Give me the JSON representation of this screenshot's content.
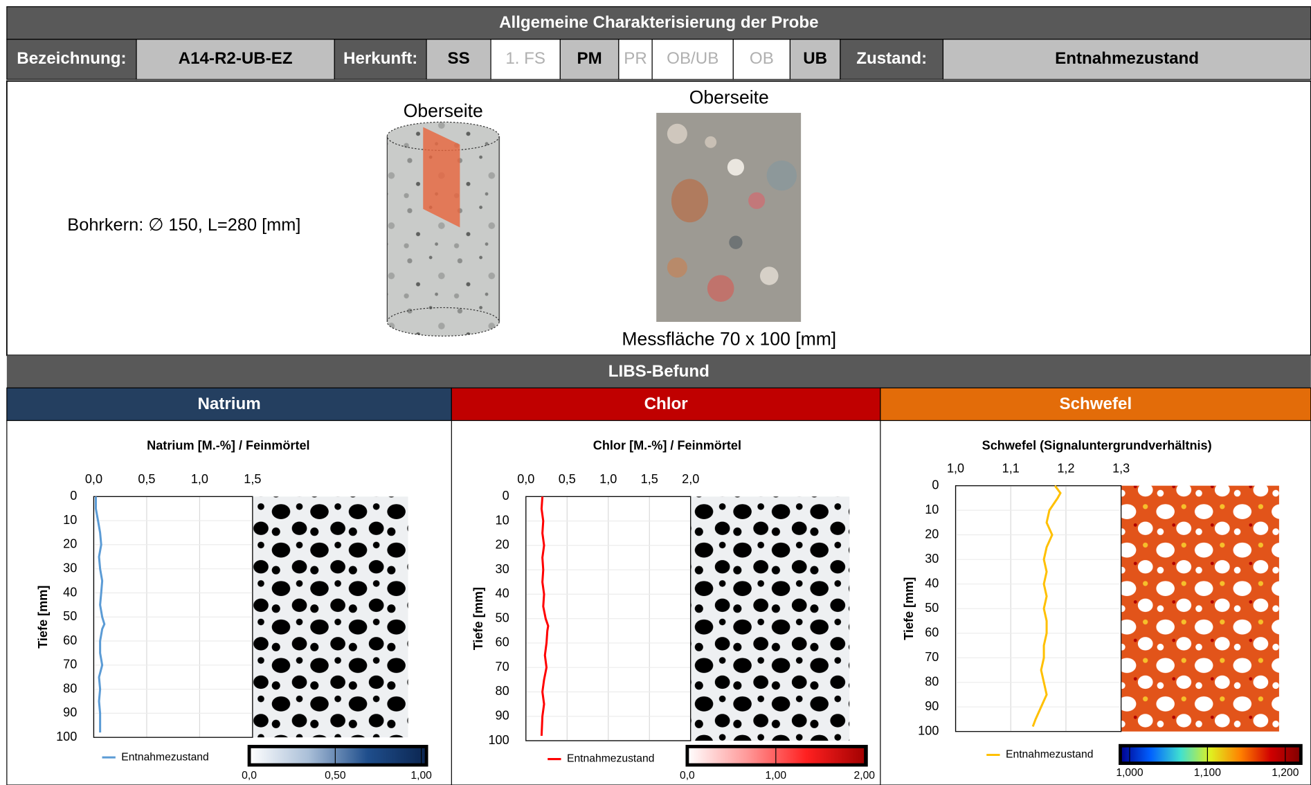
{
  "header": {
    "title": "Allgemeine Charakterisierung der Probe",
    "designation_label": "Bezeichnung:",
    "designation": "A14-R2-UB-EZ",
    "origin_label": "Herkunft:",
    "origin": [
      {
        "label": "SS",
        "selected": true
      },
      {
        "label": "1. FS",
        "selected": false
      },
      {
        "label": "PM",
        "selected": true
      },
      {
        "label": "PR",
        "selected": false
      },
      {
        "label": "OB/UB",
        "selected": false
      },
      {
        "label": "OB",
        "selected": false
      },
      {
        "label": "UB",
        "selected": true
      }
    ],
    "state_label": "Zustand:",
    "state": "Entnahmezustand"
  },
  "sample": {
    "drawing_label": "Oberseite",
    "photo_label": "Oberseite",
    "core": "Bohrkern: ∅ 150, L=280 [mm]",
    "area": "Messfläche 70 x 100 [mm]"
  },
  "libs": {
    "title": "LIBS-Befund",
    "elements": [
      {
        "name": "Natrium",
        "color": "#243f60"
      },
      {
        "name": "Chlor",
        "color": "#c00000"
      },
      {
        "name": "Schwefel",
        "color": "#e36c09"
      }
    ]
  },
  "chart_data": [
    {
      "type": "line",
      "title": "Natrium [M.-%] / Feinmörtel",
      "ylabel": "Tiefe [mm]",
      "xlim": [
        0,
        1.5
      ],
      "xticks": [
        {
          "value": 0,
          "label": "0,0"
        },
        {
          "value": 0.5,
          "label": "0,5"
        },
        {
          "value": 1,
          "label": "1,0"
        },
        {
          "value": 1.5,
          "label": "1,5"
        }
      ],
      "ylim": [
        0,
        100
      ],
      "yticks": [
        0,
        10,
        20,
        30,
        40,
        50,
        60,
        70,
        80,
        90,
        100
      ],
      "y_inverted": true,
      "grid": true,
      "depths": [
        0,
        5,
        10,
        15,
        20,
        25,
        30,
        35,
        40,
        45,
        50,
        53,
        55,
        60,
        65,
        70,
        75,
        80,
        85,
        90,
        98
      ],
      "series": [
        {
          "name": "Entnahmezustand",
          "color": "#5b9bd5",
          "values": [
            0.02,
            0.02,
            0.04,
            0.06,
            0.07,
            0.05,
            0.06,
            0.08,
            0.07,
            0.06,
            0.08,
            0.1,
            0.08,
            0.06,
            0.06,
            0.08,
            0.05,
            0.06,
            0.05,
            0.06,
            0.06
          ]
        }
      ],
      "colorbar": {
        "lim": [
          0,
          1.03
        ],
        "colors": [
          "#ffffff",
          "#aabfd8",
          "#1f4e8c",
          "#0b2550"
        ],
        "ticks": [
          {
            "value": 0,
            "label": "0,0"
          },
          {
            "value": 0.5,
            "label": "0,50"
          },
          {
            "value": 1,
            "label": "1,00"
          }
        ]
      }
    },
    {
      "type": "line",
      "title": "Chlor [M.-%] / Feinmörtel",
      "ylabel": "Tiefe [mm]",
      "xlim": [
        0,
        2
      ],
      "xticks": [
        {
          "value": 0,
          "label": "0,0"
        },
        {
          "value": 0.5,
          "label": "0,5"
        },
        {
          "value": 1,
          "label": "1,0"
        },
        {
          "value": 1.5,
          "label": "1,5"
        },
        {
          "value": 2,
          "label": "2,0"
        }
      ],
      "ylim": [
        0,
        100
      ],
      "yticks": [
        0,
        10,
        20,
        30,
        40,
        50,
        60,
        70,
        80,
        90,
        100
      ],
      "y_inverted": true,
      "grid": true,
      "depths": [
        0,
        5,
        10,
        15,
        20,
        25,
        30,
        35,
        40,
        45,
        50,
        53,
        55,
        60,
        65,
        70,
        75,
        80,
        85,
        90,
        98
      ],
      "series": [
        {
          "name": "Entnahmezustand",
          "color": "#ff0000",
          "values": [
            0.2,
            0.19,
            0.21,
            0.2,
            0.22,
            0.2,
            0.21,
            0.2,
            0.22,
            0.21,
            0.24,
            0.27,
            0.26,
            0.25,
            0.23,
            0.25,
            0.22,
            0.2,
            0.22,
            0.2,
            0.19
          ]
        }
      ],
      "colorbar": {
        "lim": [
          0,
          2.02
        ],
        "colors": [
          "#ffffff",
          "#ff9999",
          "#ff2020",
          "#a00000"
        ],
        "ticks": [
          {
            "value": 0,
            "label": "0,0"
          },
          {
            "value": 1,
            "label": "1,00"
          },
          {
            "value": 2,
            "label": "2,00"
          }
        ]
      }
    },
    {
      "type": "line",
      "title": "Schwefel (Signaluntergrundverhältnis)",
      "ylabel": "Tiefe [mm]",
      "xlim": [
        1,
        1.3
      ],
      "xticks": [
        {
          "value": 1,
          "label": "1,0"
        },
        {
          "value": 1.1,
          "label": "1,1"
        },
        {
          "value": 1.2,
          "label": "1,2"
        },
        {
          "value": 1.3,
          "label": "1,3"
        }
      ],
      "ylim": [
        0,
        100
      ],
      "yticks": [
        0,
        10,
        20,
        30,
        40,
        50,
        60,
        70,
        80,
        90,
        100
      ],
      "y_inverted": true,
      "grid": true,
      "depths": [
        0,
        3,
        5,
        10,
        15,
        20,
        25,
        30,
        35,
        40,
        45,
        50,
        55,
        60,
        65,
        70,
        75,
        80,
        85,
        90,
        95,
        98
      ],
      "series": [
        {
          "name": "Entnahmezustand",
          "color": "#ffc000",
          "values": [
            1.18,
            1.19,
            1.185,
            1.17,
            1.165,
            1.175,
            1.165,
            1.16,
            1.165,
            1.16,
            1.165,
            1.16,
            1.165,
            1.165,
            1.16,
            1.16,
            1.155,
            1.16,
            1.165,
            1.155,
            1.145,
            1.14
          ]
        }
      ],
      "colorbar": {
        "lim": [
          0.988,
          1.22
        ],
        "colors": [
          "#00008f",
          "#0060ff",
          "#40e0d0",
          "#e0f020",
          "#ff8000",
          "#d00000",
          "#800000"
        ],
        "ticks": [
          {
            "value": 1,
            "label": "1,000"
          },
          {
            "value": 1.1,
            "label": "1,100"
          },
          {
            "value": 1.2,
            "label": "1,200"
          }
        ]
      }
    }
  ]
}
